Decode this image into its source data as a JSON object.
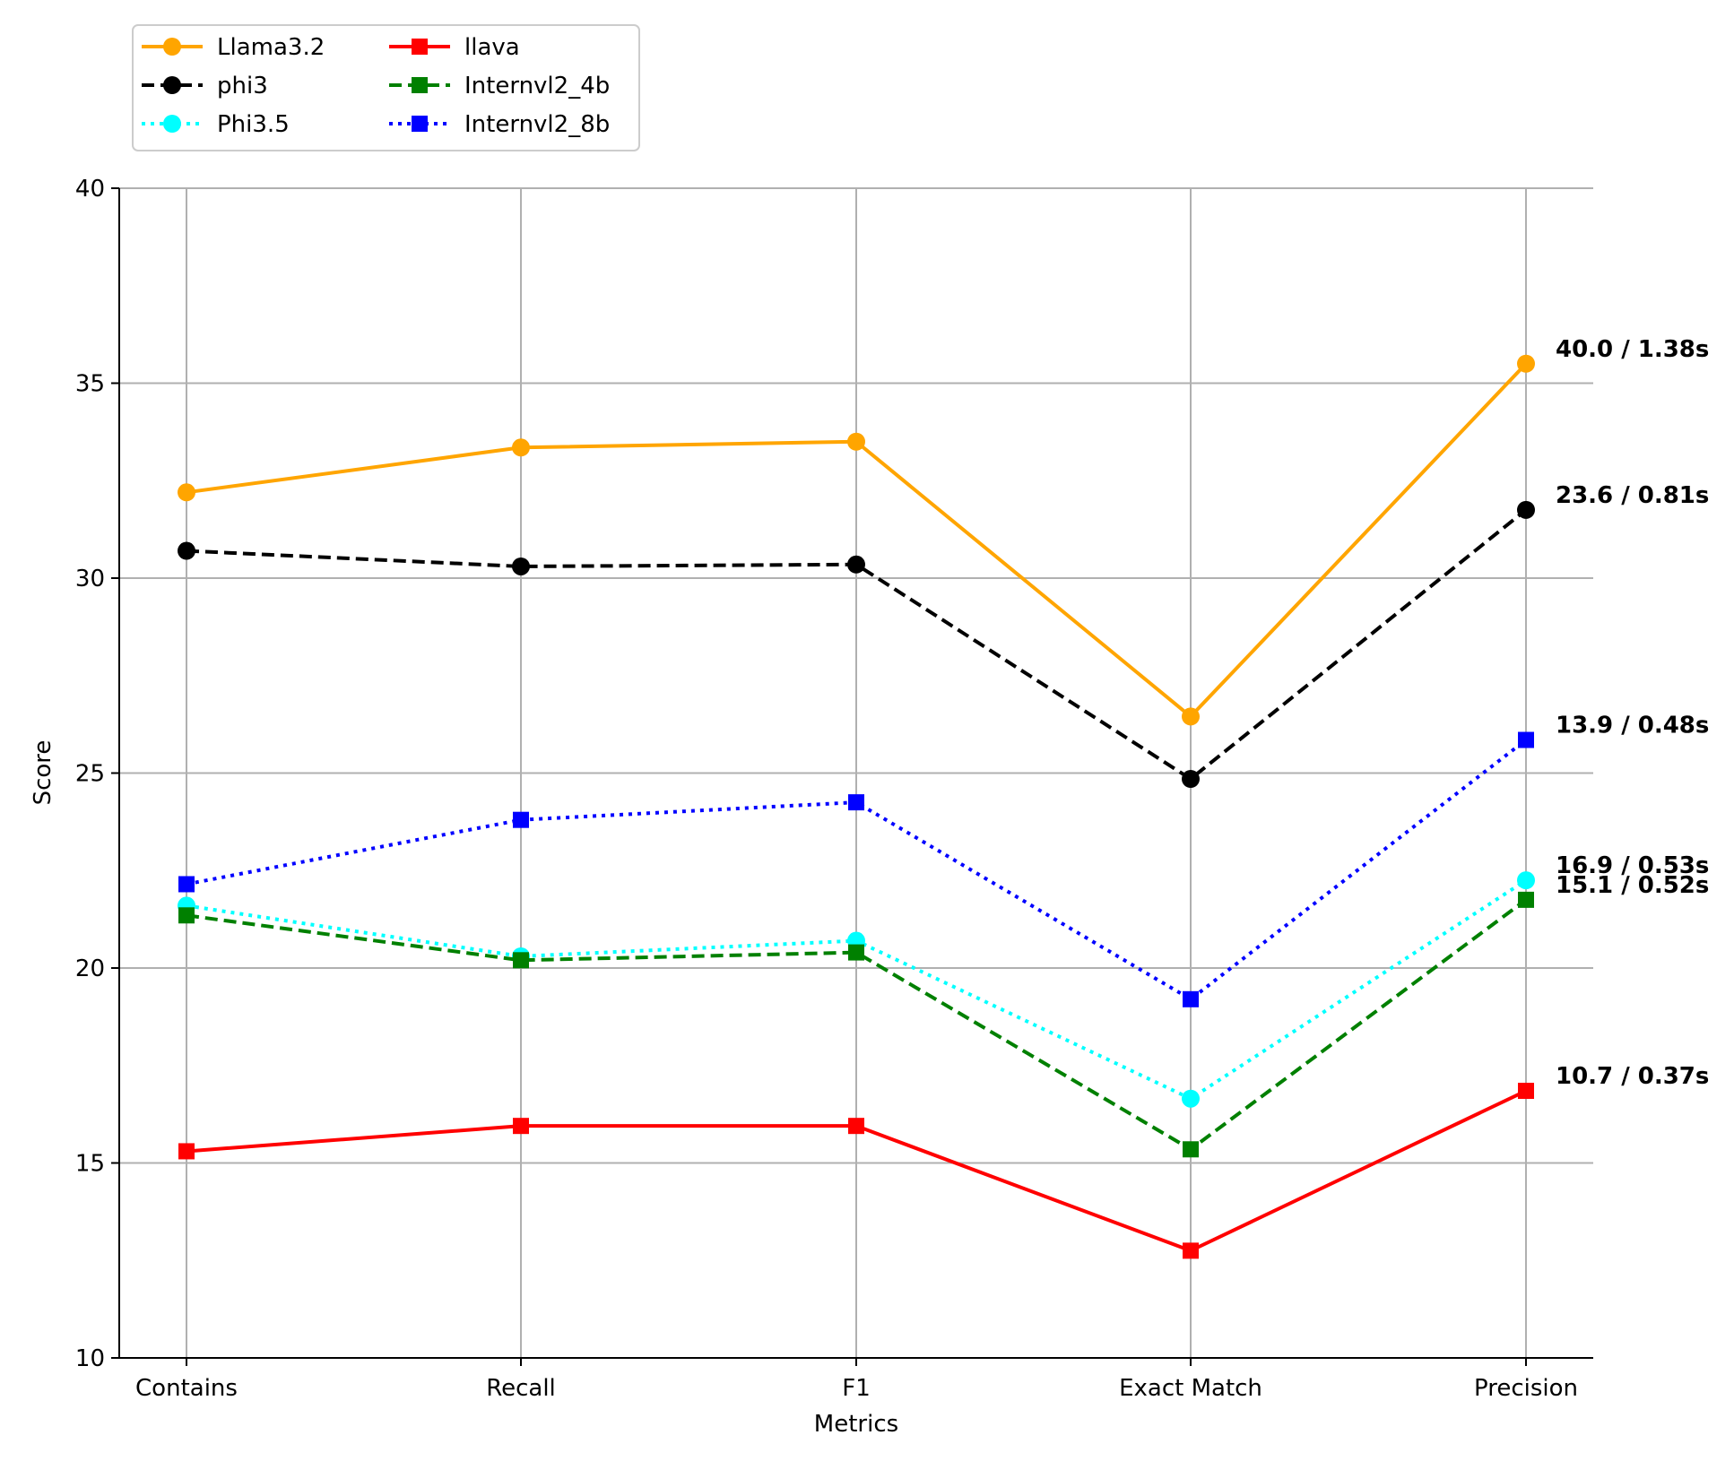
{
  "chart_data": {
    "type": "line",
    "title": "",
    "xlabel": "Metrics",
    "ylabel": "Score",
    "categories": [
      "Contains",
      "Recall",
      "F1",
      "Exact Match",
      "Precision"
    ],
    "ylim": [
      10,
      40
    ],
    "yticks": [
      10,
      15,
      20,
      25,
      30,
      35,
      40
    ],
    "grid": true,
    "legend": {
      "position": "top-left",
      "columns": 2
    },
    "series": [
      {
        "name": "Llama3.2",
        "color": "#FFA500",
        "style": "solid",
        "marker": "circle",
        "values": [
          32.2,
          33.35,
          33.5,
          26.45,
          35.5
        ],
        "end_label": "40.0 / 1.38s"
      },
      {
        "name": "phi3",
        "color": "#000000",
        "style": "dashed",
        "marker": "circle",
        "values": [
          30.7,
          30.3,
          30.35,
          24.85,
          31.75
        ],
        "end_label": "23.6 / 0.81s"
      },
      {
        "name": "Phi3.5",
        "color": "#00FFFF",
        "style": "dotted",
        "marker": "circle",
        "values": [
          21.6,
          20.3,
          20.7,
          16.65,
          22.25
        ],
        "end_label": "16.9 / 0.53s"
      },
      {
        "name": "llava",
        "color": "#FF0000",
        "style": "solid",
        "marker": "square",
        "values": [
          15.3,
          15.95,
          15.95,
          12.75,
          16.85
        ],
        "end_label": "10.7 / 0.37s"
      },
      {
        "name": "Internvl2_4b",
        "color": "#008000",
        "style": "dashed",
        "marker": "square",
        "values": [
          21.35,
          20.2,
          20.4,
          15.35,
          21.75
        ],
        "end_label": "15.1 / 0.52s"
      },
      {
        "name": "Internvl2_8b",
        "color": "#0000FF",
        "style": "dotted",
        "marker": "square",
        "values": [
          22.15,
          23.8,
          24.25,
          19.2,
          25.85
        ],
        "end_label": "13.9 / 0.48s"
      }
    ]
  }
}
